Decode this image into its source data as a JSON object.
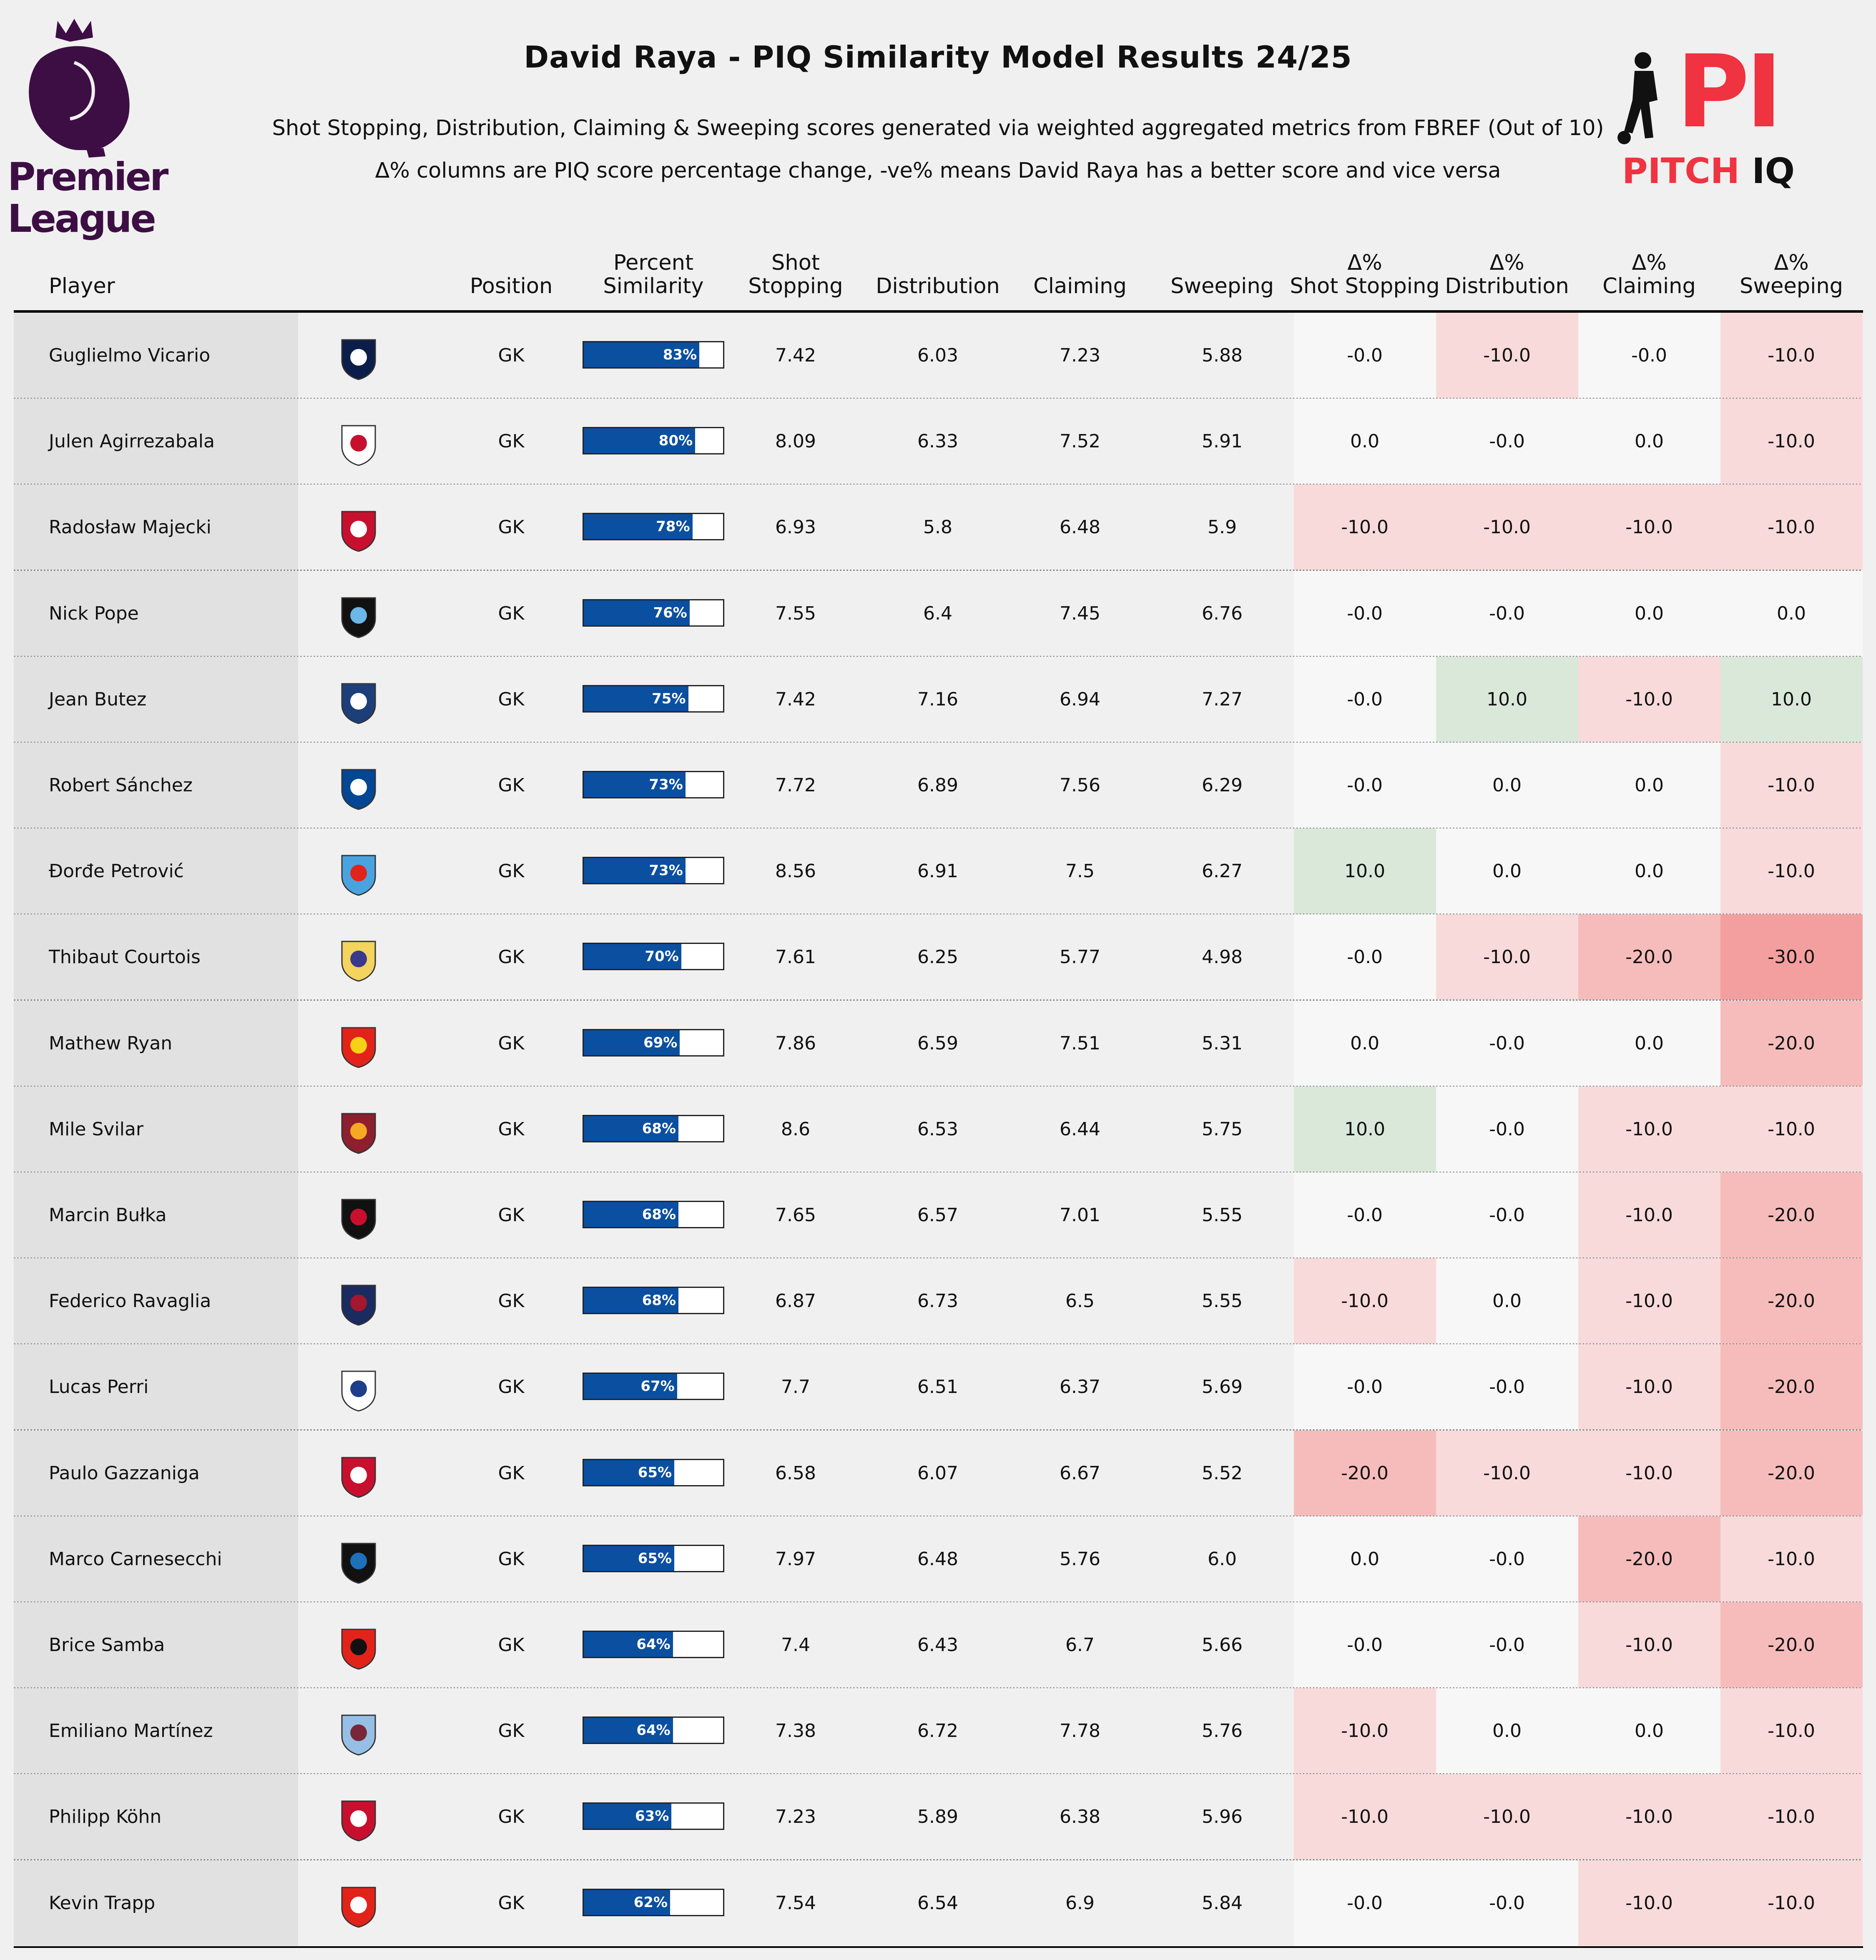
{
  "title": "David Raya - PIQ Similarity Model Results 24/25",
  "subtitle1": "Shot Stopping, Distribution, Claiming & Sweeping scores generated via weighted aggregated metrics from FBREF (Out of 10)",
  "subtitle2": "Δ% columns are PIQ score percentage change, -ve% means David Raya has a better score and vice versa",
  "logos": {
    "left": {
      "name": "premier-league-logo",
      "text_line1": "Premier",
      "text_line2": "League",
      "color": "#3d0e44"
    },
    "right": {
      "name": "pitch-iq-logo",
      "monogram": "PI",
      "wordmark_a": "PITCH",
      "wordmark_b": "IQ",
      "accent": "#ef3340",
      "dark": "#111111"
    }
  },
  "colors": {
    "bar": "#0b4fa0",
    "positive_delta": "#d9e8d9",
    "neg10": "#f8dada",
    "neg20": "#f6bcbc",
    "neg30": "#f49f9f",
    "neutral": "#f7f7f7"
  },
  "header": {
    "player": "Player",
    "position": "Position",
    "similarity_1": "Percent",
    "similarity_2": "Similarity",
    "shot_stopping_1": "Shot",
    "shot_stopping_2": "Stopping",
    "distribution": "Distribution",
    "claiming": "Claiming",
    "sweeping": "Sweeping",
    "d_shot_1": "Δ%",
    "d_shot_2": "Shot Stopping",
    "d_dist_1": "Δ%",
    "d_dist_2": "Distribution",
    "d_claim_1": "Δ%",
    "d_claim_2": "Claiming",
    "d_sweep_1": "Δ%",
    "d_sweep_2": "Sweeping"
  },
  "chart_data": {
    "type": "table",
    "columns": [
      "Player",
      "Position",
      "Percent Similarity",
      "Shot Stopping",
      "Distribution",
      "Claiming",
      "Sweeping",
      "Δ% Shot Stopping",
      "Δ% Distribution",
      "Δ% Claiming",
      "Δ% Sweeping"
    ],
    "rows": [
      {
        "player": "Guglielmo Vicario",
        "crest": "tottenham-crest",
        "position": "GK",
        "similarity": 83,
        "similarity_label": "83%",
        "shot_stopping": "7.42",
        "distribution": "6.03",
        "claiming": "7.23",
        "sweeping": "5.88",
        "d_shot": "-0.0",
        "d_dist": "-10.0",
        "d_claim": "-0.0",
        "d_sweep": "-10.0"
      },
      {
        "player": "Julen Agirrezabala",
        "crest": "athletic-bilbao-crest",
        "position": "GK",
        "similarity": 80,
        "similarity_label": "80%",
        "shot_stopping": "8.09",
        "distribution": "6.33",
        "claiming": "7.52",
        "sweeping": "5.91",
        "d_shot": "0.0",
        "d_dist": "-0.0",
        "d_claim": "0.0",
        "d_sweep": "-10.0"
      },
      {
        "player": "Radosław Majecki",
        "crest": "monaco-crest",
        "position": "GK",
        "similarity": 78,
        "similarity_label": "78%",
        "shot_stopping": "6.93",
        "distribution": "5.8",
        "claiming": "6.48",
        "sweeping": "5.9",
        "d_shot": "-10.0",
        "d_dist": "-10.0",
        "d_claim": "-10.0",
        "d_sweep": "-10.0"
      },
      {
        "player": "Nick Pope",
        "crest": "newcastle-crest",
        "position": "GK",
        "similarity": 76,
        "similarity_label": "76%",
        "shot_stopping": "7.55",
        "distribution": "6.4",
        "claiming": "7.45",
        "sweeping": "6.76",
        "d_shot": "-0.0",
        "d_dist": "-0.0",
        "d_claim": "0.0",
        "d_sweep": "0.0"
      },
      {
        "player": "Jean Butez",
        "crest": "como-crest",
        "position": "GK",
        "similarity": 75,
        "similarity_label": "75%",
        "shot_stopping": "7.42",
        "distribution": "7.16",
        "claiming": "6.94",
        "sweeping": "7.27",
        "d_shot": "-0.0",
        "d_dist": "10.0",
        "d_claim": "-10.0",
        "d_sweep": "10.0"
      },
      {
        "player": "Robert Sánchez",
        "crest": "chelsea-crest",
        "position": "GK",
        "similarity": 73,
        "similarity_label": "73%",
        "shot_stopping": "7.72",
        "distribution": "6.89",
        "claiming": "7.56",
        "sweeping": "6.29",
        "d_shot": "-0.0",
        "d_dist": "0.0",
        "d_claim": "0.0",
        "d_sweep": "-10.0"
      },
      {
        "player": "Đorđe Petrović",
        "crest": "strasbourg-crest",
        "position": "GK",
        "similarity": 73,
        "similarity_label": "73%",
        "shot_stopping": "8.56",
        "distribution": "6.91",
        "claiming": "7.5",
        "sweeping": "6.27",
        "d_shot": "10.0",
        "d_dist": "0.0",
        "d_claim": "0.0",
        "d_sweep": "-10.0"
      },
      {
        "player": "Thibaut Courtois",
        "crest": "real-madrid-crest",
        "position": "GK",
        "similarity": 70,
        "similarity_label": "70%",
        "shot_stopping": "7.61",
        "distribution": "6.25",
        "claiming": "5.77",
        "sweeping": "4.98",
        "d_shot": "-0.0",
        "d_dist": "-10.0",
        "d_claim": "-20.0",
        "d_sweep": "-30.0"
      },
      {
        "player": "Mathew Ryan",
        "crest": "lens-crest",
        "position": "GK",
        "similarity": 69,
        "similarity_label": "69%",
        "shot_stopping": "7.86",
        "distribution": "6.59",
        "claiming": "7.51",
        "sweeping": "5.31",
        "d_shot": "0.0",
        "d_dist": "-0.0",
        "d_claim": "0.0",
        "d_sweep": "-20.0"
      },
      {
        "player": "Mile Svilar",
        "crest": "roma-crest",
        "position": "GK",
        "similarity": 68,
        "similarity_label": "68%",
        "shot_stopping": "8.6",
        "distribution": "6.53",
        "claiming": "6.44",
        "sweeping": "5.75",
        "d_shot": "10.0",
        "d_dist": "-0.0",
        "d_claim": "-10.0",
        "d_sweep": "-10.0"
      },
      {
        "player": "Marcin Bułka",
        "crest": "nice-crest",
        "position": "GK",
        "similarity": 68,
        "similarity_label": "68%",
        "shot_stopping": "7.65",
        "distribution": "6.57",
        "claiming": "7.01",
        "sweeping": "5.55",
        "d_shot": "-0.0",
        "d_dist": "-0.0",
        "d_claim": "-10.0",
        "d_sweep": "-20.0"
      },
      {
        "player": "Federico Ravaglia",
        "crest": "bologna-crest",
        "position": "GK",
        "similarity": 68,
        "similarity_label": "68%",
        "shot_stopping": "6.87",
        "distribution": "6.73",
        "claiming": "6.5",
        "sweeping": "5.55",
        "d_shot": "-10.0",
        "d_dist": "0.0",
        "d_claim": "-10.0",
        "d_sweep": "-20.0"
      },
      {
        "player": "Lucas Perri",
        "crest": "lyon-crest",
        "position": "GK",
        "similarity": 67,
        "similarity_label": "67%",
        "shot_stopping": "7.7",
        "distribution": "6.51",
        "claiming": "6.37",
        "sweeping": "5.69",
        "d_shot": "-0.0",
        "d_dist": "-0.0",
        "d_claim": "-10.0",
        "d_sweep": "-20.0"
      },
      {
        "player": "Paulo Gazzaniga",
        "crest": "girona-crest",
        "position": "GK",
        "similarity": 65,
        "similarity_label": "65%",
        "shot_stopping": "6.58",
        "distribution": "6.07",
        "claiming": "6.67",
        "sweeping": "5.52",
        "d_shot": "-20.0",
        "d_dist": "-10.0",
        "d_claim": "-10.0",
        "d_sweep": "-20.0"
      },
      {
        "player": "Marco Carnesecchi",
        "crest": "atalanta-crest",
        "position": "GK",
        "similarity": 65,
        "similarity_label": "65%",
        "shot_stopping": "7.97",
        "distribution": "6.48",
        "claiming": "5.76",
        "sweeping": "6.0",
        "d_shot": "0.0",
        "d_dist": "-0.0",
        "d_claim": "-20.0",
        "d_sweep": "-10.0"
      },
      {
        "player": "Brice Samba",
        "crest": "rennes-crest",
        "position": "GK",
        "similarity": 64,
        "similarity_label": "64%",
        "shot_stopping": "7.4",
        "distribution": "6.43",
        "claiming": "6.7",
        "sweeping": "5.66",
        "d_shot": "-0.0",
        "d_dist": "-0.0",
        "d_claim": "-10.0",
        "d_sweep": "-20.0"
      },
      {
        "player": "Emiliano Martínez",
        "crest": "aston-villa-crest",
        "position": "GK",
        "similarity": 64,
        "similarity_label": "64%",
        "shot_stopping": "7.38",
        "distribution": "6.72",
        "claiming": "7.78",
        "sweeping": "5.76",
        "d_shot": "-10.0",
        "d_dist": "0.0",
        "d_claim": "0.0",
        "d_sweep": "-10.0"
      },
      {
        "player": "Philipp Köhn",
        "crest": "monaco-crest",
        "position": "GK",
        "similarity": 63,
        "similarity_label": "63%",
        "shot_stopping": "7.23",
        "distribution": "5.89",
        "claiming": "6.38",
        "sweeping": "5.96",
        "d_shot": "-10.0",
        "d_dist": "-10.0",
        "d_claim": "-10.0",
        "d_sweep": "-10.0"
      },
      {
        "player": "Kevin Trapp",
        "crest": "eintracht-frankfurt-crest",
        "position": "GK",
        "similarity": 62,
        "similarity_label": "62%",
        "shot_stopping": "7.54",
        "distribution": "6.54",
        "claiming": "6.9",
        "sweeping": "5.84",
        "d_shot": "-0.0",
        "d_dist": "-0.0",
        "d_claim": "-10.0",
        "d_sweep": "-10.0"
      }
    ]
  }
}
